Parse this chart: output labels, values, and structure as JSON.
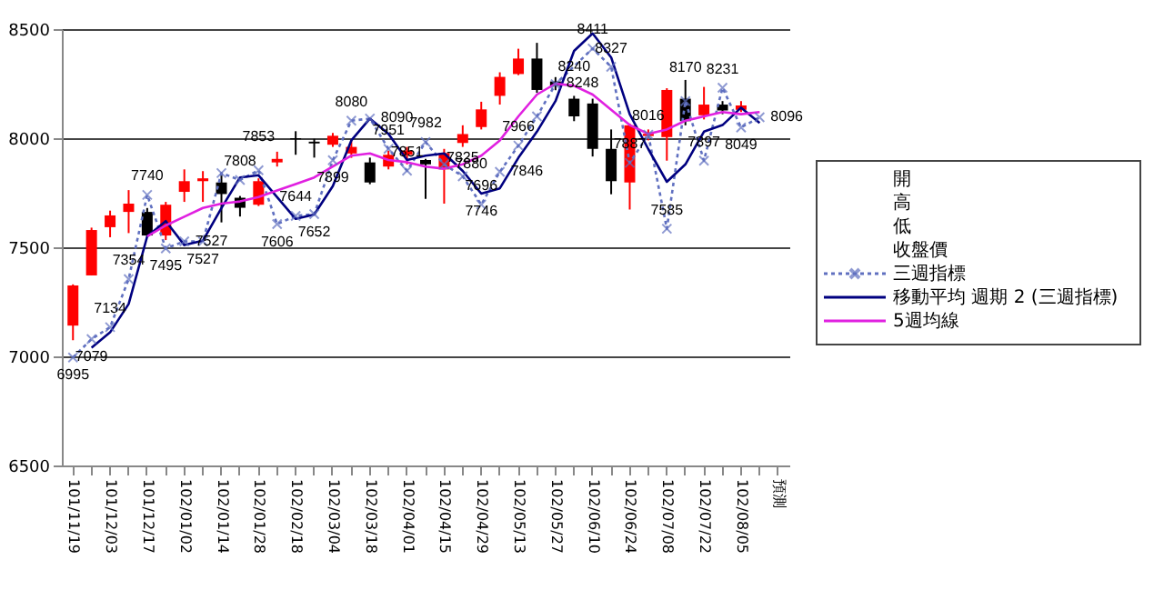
{
  "chart_data": {
    "type": "candlestick",
    "categories": [
      "101/11/19",
      null,
      "101/12/03",
      null,
      "101/12/17",
      null,
      "102/01/02",
      null,
      "102/01/14",
      null,
      "102/01/28",
      null,
      "102/02/18",
      null,
      "102/03/04",
      null,
      "102/03/18",
      null,
      "102/04/01",
      null,
      "102/04/15",
      null,
      "102/04/29",
      null,
      "102/05/13",
      null,
      "102/05/27",
      null,
      "102/06/10",
      null,
      "102/06/24",
      null,
      "102/07/08",
      null,
      "102/07/22",
      null,
      "102/08/05",
      null,
      "預測"
    ],
    "ohlc": [
      [
        7141,
        7330,
        7074,
        7325
      ],
      [
        7371,
        7590,
        7371,
        7579
      ],
      [
        7592,
        7668,
        7546,
        7646
      ],
      [
        7662,
        7762,
        7565,
        7700
      ],
      [
        7662,
        7680,
        7546,
        7554
      ],
      [
        7554,
        7708,
        7533,
        7695
      ],
      [
        7754,
        7857,
        7708,
        7803
      ],
      [
        7803,
        7849,
        7708,
        7816
      ],
      [
        7797,
        7843,
        7614,
        7744
      ],
      [
        7727,
        7735,
        7641,
        7681
      ],
      [
        7695,
        7816,
        7689,
        7803
      ],
      [
        7889,
        7938,
        7870,
        7905
      ],
      [
        8000,
        8032,
        7924,
        7995
      ],
      [
        7984,
        7997,
        7911,
        7976
      ],
      [
        7970,
        8024,
        7960,
        8011
      ],
      [
        7930,
        7990,
        7910,
        7960
      ],
      [
        7889,
        7911,
        7789,
        7797
      ],
      [
        7870,
        7943,
        7857,
        7924
      ],
      [
        7924,
        7960,
        7880,
        7943
      ],
      [
        7900,
        7905,
        7722,
        7880
      ],
      [
        7857,
        7951,
        7700,
        7932
      ],
      [
        7978,
        8059,
        7960,
        8019
      ],
      [
        8051,
        8167,
        8040,
        8132
      ],
      [
        8194,
        8302,
        8154,
        8281
      ],
      [
        8294,
        8410,
        8289,
        8365
      ],
      [
        8365,
        8437,
        8208,
        8221
      ],
      [
        8260,
        8280,
        8220,
        8240
      ],
      [
        8181,
        8194,
        8078,
        8100
      ],
      [
        8159,
        8181,
        7916,
        7951
      ],
      [
        7951,
        8040,
        7743,
        7803
      ],
      [
        7797,
        8067,
        7673,
        8059
      ],
      [
        8010,
        8040,
        7990,
        8020
      ],
      [
        8005,
        8229,
        7897,
        8221
      ],
      [
        8181,
        8267,
        8059,
        8078
      ],
      [
        8105,
        8235,
        8086,
        8154
      ],
      [
        8154,
        8170,
        8110,
        8127
      ],
      [
        8130,
        8170,
        8120,
        8150
      ],
      null,
      null
    ],
    "colors": [
      "#ff0000",
      "#ff0000",
      "#ff0000",
      "#ff0000",
      "#000000",
      "#ff0000",
      "#ff0000",
      "#ff0000",
      "#000000",
      "#000000",
      "#ff0000",
      "#ff0000",
      "#000000",
      "#000000",
      "#ff0000",
      "#ff0000",
      "#000000",
      "#ff0000",
      "#ff0000",
      "#000000",
      "#ff0000",
      "#ff0000",
      "#ff0000",
      "#ff0000",
      "#ff0000",
      "#000000",
      "#000000",
      "#000000",
      "#000000",
      "#000000",
      "#ff0000",
      "#ff0000",
      "#ff0000",
      "#000000",
      "#ff0000",
      "#000000",
      "#ff0000",
      null,
      null
    ],
    "annotations": [
      "開",
      "高",
      "低",
      "收盤價"
    ],
    "series": [
      {
        "name": "三週指標",
        "type": "line",
        "color": "#6070c0",
        "line_style": "dotted",
        "marker": "cross",
        "values": [
          6995,
          7079,
          7134,
          7354,
          7740,
          7495,
          7527,
          7527,
          7840,
          7808,
          7853,
          7606,
          7644,
          7652,
          7899,
          8080,
          8090,
          7951,
          7851,
          7982,
          7880,
          7825,
          7696,
          7846,
          7966,
          8100,
          8248,
          null,
          8411,
          8327,
          7887,
          8016,
          7585,
          8170,
          7897,
          8231,
          8049,
          8096,
          null
        ],
        "value_labels": [
          "6995",
          "7079",
          "7134",
          "7354",
          "7740",
          "7495",
          "7527",
          "7527",
          null,
          "7808",
          "7853",
          "7606",
          "7644",
          "7652",
          "7899",
          "8080",
          "8090",
          "7951",
          "7851",
          "7982",
          "7880",
          "7825",
          "7696",
          "7846",
          "7966",
          null,
          "8248",
          null,
          "8411",
          "8327",
          "7887",
          "8016",
          "7585",
          "8170",
          "7897",
          "8231",
          "8049",
          "8096",
          null
        ]
      },
      {
        "name": "移動平均 週期 2 (三週指標)",
        "type": "line",
        "color": "#000080",
        "line_style": "solid",
        "marker": "none",
        "values": [
          null,
          7040,
          7110,
          7240,
          7550,
          7620,
          7510,
          7530,
          7680,
          7820,
          7830,
          7730,
          7630,
          7650,
          7780,
          7990,
          8090,
          8020,
          7900,
          7920,
          7930,
          7850,
          7746,
          7770,
          7910,
          8030,
          8170,
          8400,
          8480,
          8370,
          8110,
          7950,
          7800,
          7880,
          8030,
          8060,
          8140,
          8070,
          null
        ],
        "value_labels": [
          null,
          null,
          null,
          null,
          null,
          null,
          null,
          null,
          null,
          null,
          null,
          null,
          null,
          null,
          null,
          null,
          null,
          null,
          null,
          null,
          null,
          null,
          "7746",
          null,
          null,
          null,
          null,
          null,
          null,
          null,
          null,
          null,
          null,
          null,
          null,
          null,
          null,
          null,
          null
        ]
      },
      {
        "name": "5週均線",
        "type": "line",
        "color": "#e020e0",
        "line_style": "solid",
        "marker": "none",
        "values": [
          null,
          null,
          null,
          null,
          7550,
          7600,
          7640,
          7680,
          7700,
          7710,
          7730,
          7760,
          7790,
          7820,
          7870,
          7920,
          7930,
          7900,
          7890,
          7870,
          7860,
          7880,
          7920,
          7990,
          8100,
          8200,
          8250,
          8240,
          8200,
          8130,
          8060,
          8020,
          8040,
          8080,
          8100,
          8120,
          8110,
          8120,
          null
        ],
        "value_labels": [
          null,
          null,
          null,
          null,
          null,
          null,
          null,
          null,
          null,
          null,
          null,
          null,
          null,
          null,
          null,
          null,
          null,
          null,
          null,
          null,
          null,
          null,
          null,
          null,
          null,
          null,
          null,
          "8240",
          null,
          null,
          null,
          null,
          null,
          null,
          null,
          null,
          null,
          null,
          null
        ]
      }
    ],
    "ylim": [
      6500,
      8500
    ],
    "yticks": [
      6500,
      7000,
      7500,
      8000,
      8500
    ],
    "grid": "y",
    "legend": "right"
  }
}
